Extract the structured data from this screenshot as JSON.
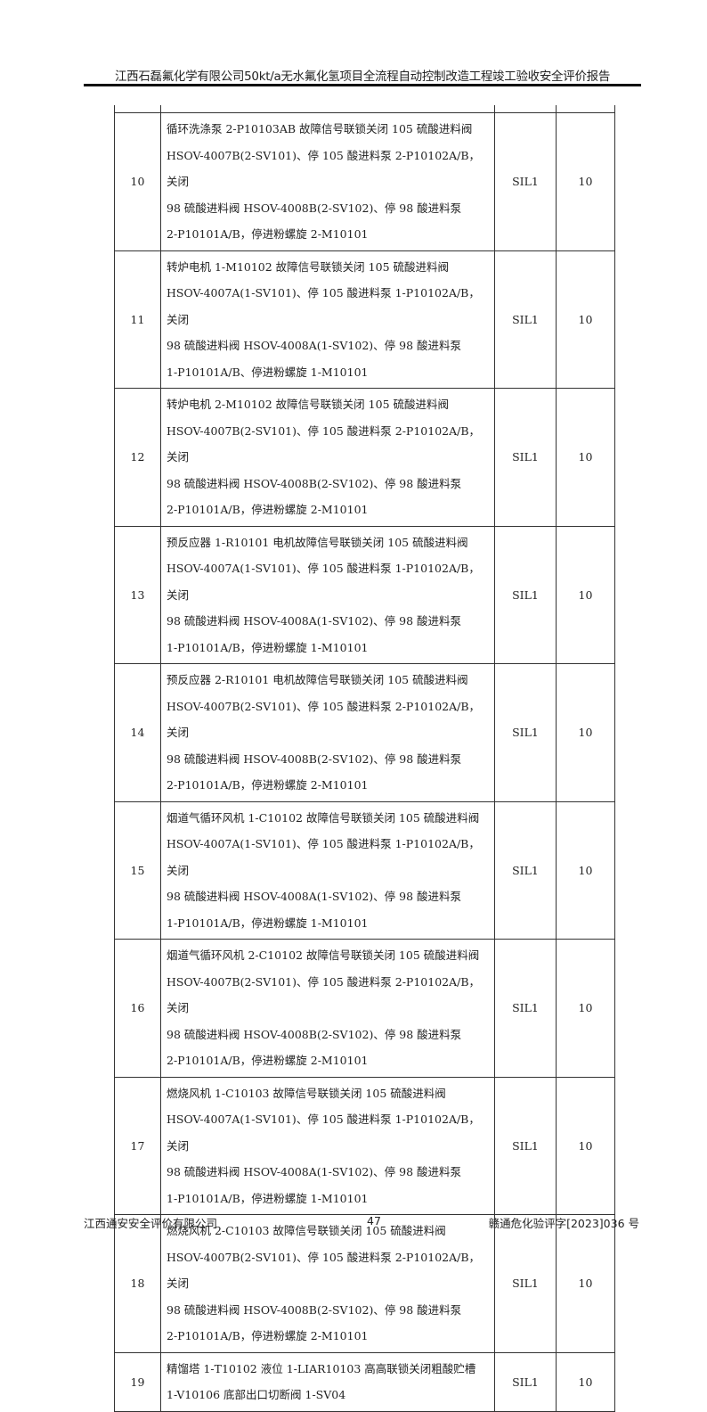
{
  "header": {
    "title": "江西石磊氟化学有限公司50kt/a无水氟化氢项目全流程自动控制改造工程竣工验收安全评价报告"
  },
  "table": {
    "rows": [
      {
        "no": "10",
        "lines": [
          "循环洗涤泵 2-P10103AB 故障信号联锁关闭 105 硫酸进料阀",
          "HSOV-4007B(2-SV101)、停 105 酸进料泵 2-P10102A/B，关闭",
          "98 硫酸进料阀 HSOV-4008B(2-SV102)、停 98 酸进料泵",
          "2-P10101A/B，停进粉螺旋 2-M10101"
        ],
        "sil": "SIL1",
        "value": "10"
      },
      {
        "no": "11",
        "lines": [
          "转炉电机 1-M10102 故障信号联锁关闭 105 硫酸进料阀",
          "HSOV-4007A(1-SV101)、停 105 酸进料泵 1-P10102A/B，关闭",
          "98 硫酸进料阀 HSOV-4008A(1-SV102)、停 98 酸进料泵",
          "1-P10101A/B、停进粉螺旋 1-M10101"
        ],
        "sil": "SIL1",
        "value": "10"
      },
      {
        "no": "12",
        "lines": [
          "转炉电机 2-M10102 故障信号联锁关闭 105 硫酸进料阀",
          "HSOV-4007B(2-SV101)、停 105 酸进料泵 2-P10102A/B，关闭",
          "98 硫酸进料阀 HSOV-4008B(2-SV102)、停 98 酸进料泵",
          "2-P10101A/B，停进粉螺旋 2-M10101"
        ],
        "sil": "SIL1",
        "value": "10"
      },
      {
        "no": "13",
        "lines": [
          "预反应器 1-R10101 电机故障信号联锁关闭 105 硫酸进料阀",
          "HSOV-4007A(1-SV101)、停 105 酸进料泵 1-P10102A/B，关闭",
          "98 硫酸进料阀 HSOV-4008A(1-SV102)、停 98 酸进料泵",
          "1-P10101A/B，停进粉螺旋 1-M10101"
        ],
        "sil": "SIL1",
        "value": "10"
      },
      {
        "no": "14",
        "lines": [
          "预反应器 2-R10101 电机故障信号联锁关闭 105 硫酸进料阀",
          "HSOV-4007B(2-SV101)、停 105 酸进料泵 2-P10102A/B，关闭",
          "98 硫酸进料阀 HSOV-4008B(2-SV102)、停 98 酸进料泵",
          "2-P10101A/B，停进粉螺旋 2-M10101"
        ],
        "sil": "SIL1",
        "value": "10"
      },
      {
        "no": "15",
        "lines": [
          "烟道气循环风机 1-C10102 故障信号联锁关闭 105 硫酸进料阀",
          "HSOV-4007A(1-SV101)、停 105 酸进料泵 1-P10102A/B，关闭",
          "98 硫酸进料阀 HSOV-4008A(1-SV102)、停 98 酸进料泵",
          "1-P10101A/B，停进粉螺旋 1-M10101"
        ],
        "sil": "SIL1",
        "value": "10"
      },
      {
        "no": "16",
        "lines": [
          "烟道气循环风机 2-C10102 故障信号联锁关闭 105 硫酸进料阀",
          "HSOV-4007B(2-SV101)、停 105 酸进料泵 2-P10102A/B，关闭",
          "98 硫酸进料阀 HSOV-4008B(2-SV102)、停 98 酸进料泵",
          "2-P10101A/B，停进粉螺旋 2-M10101"
        ],
        "sil": "SIL1",
        "value": "10"
      },
      {
        "no": "17",
        "lines": [
          "燃烧风机 1-C10103 故障信号联锁关闭 105 硫酸进料阀",
          "HSOV-4007A(1-SV101)、停 105 酸进料泵 1-P10102A/B，关闭",
          "98 硫酸进料阀 HSOV-4008A(1-SV102)、停 98 酸进料泵",
          "1-P10101A/B，停进粉螺旋 1-M10101"
        ],
        "sil": "SIL1",
        "value": "10"
      },
      {
        "no": "18",
        "lines": [
          "燃烧风机 2-C10103 故障信号联锁关闭 105 硫酸进料阀",
          "HSOV-4007B(2-SV101)、停 105 酸进料泵 2-P10102A/B，关闭",
          "98 硫酸进料阀 HSOV-4008B(2-SV102)、停 98 酸进料泵",
          "2-P10101A/B，停进粉螺旋 2-M10101"
        ],
        "sil": "SIL1",
        "value": "10"
      },
      {
        "no": "19",
        "lines": [
          "精馏塔 1-T10102 液位 1-LIAR10103 高高联锁关闭粗酸贮槽",
          "1-V10106 底部出口切断阀 1-SV04"
        ],
        "sil": "SIL1",
        "value": "10"
      }
    ]
  },
  "footer": {
    "company": "江西通安安全评价有限公司",
    "page": "47",
    "doc_no": "赣通危化验评字[2023]036 号"
  }
}
